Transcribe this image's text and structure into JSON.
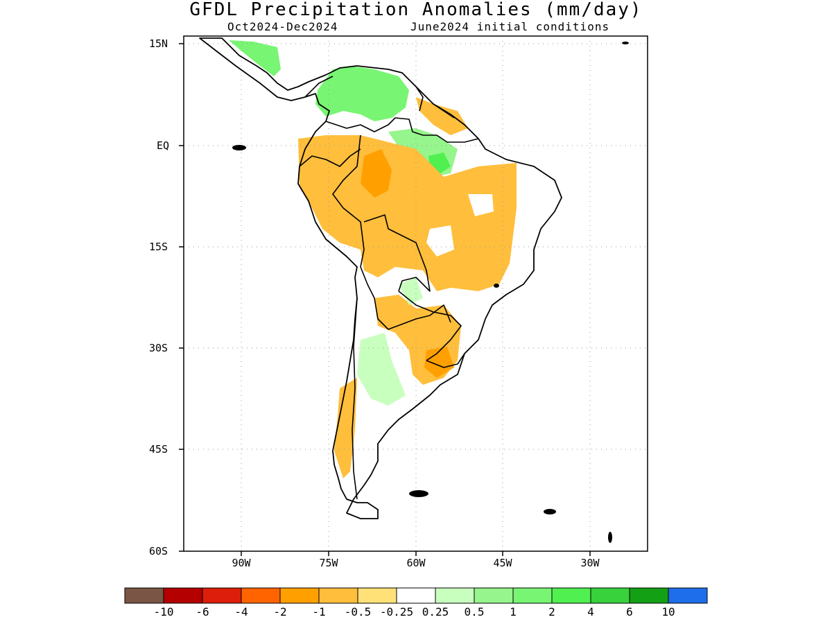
{
  "title": "GFDL Precipitation Anomalies (mm/day)",
  "period": "Oct2024-Dec2024",
  "init": "June2024 initial conditions",
  "lat_ticks": [
    "15N",
    "EQ",
    "15S",
    "30S",
    "45S",
    "60S"
  ],
  "lon_ticks": [
    "90W",
    "75W",
    "60W",
    "45W",
    "30W"
  ],
  "colorbar": {
    "labels": [
      "-10",
      "-6",
      "-4",
      "-2",
      "-1",
      "-0.5",
      "-0.25",
      "0.25",
      "0.5",
      "1",
      "2",
      "4",
      "6",
      "10"
    ],
    "colors": [
      "#7a5545",
      "#b40000",
      "#dc1e0a",
      "#ff6400",
      "#ffa000",
      "#ffbe3c",
      "#ffe178",
      "#ffffff",
      "#c8ffbe",
      "#96f58c",
      "#78f573",
      "#50f050",
      "#37d23c",
      "#14a014",
      "#1e6eeb"
    ]
  },
  "map": {
    "region": "South America",
    "lat_range": [
      "15N",
      "60S"
    ],
    "lon_range": [
      "100W",
      "20W"
    ]
  }
}
